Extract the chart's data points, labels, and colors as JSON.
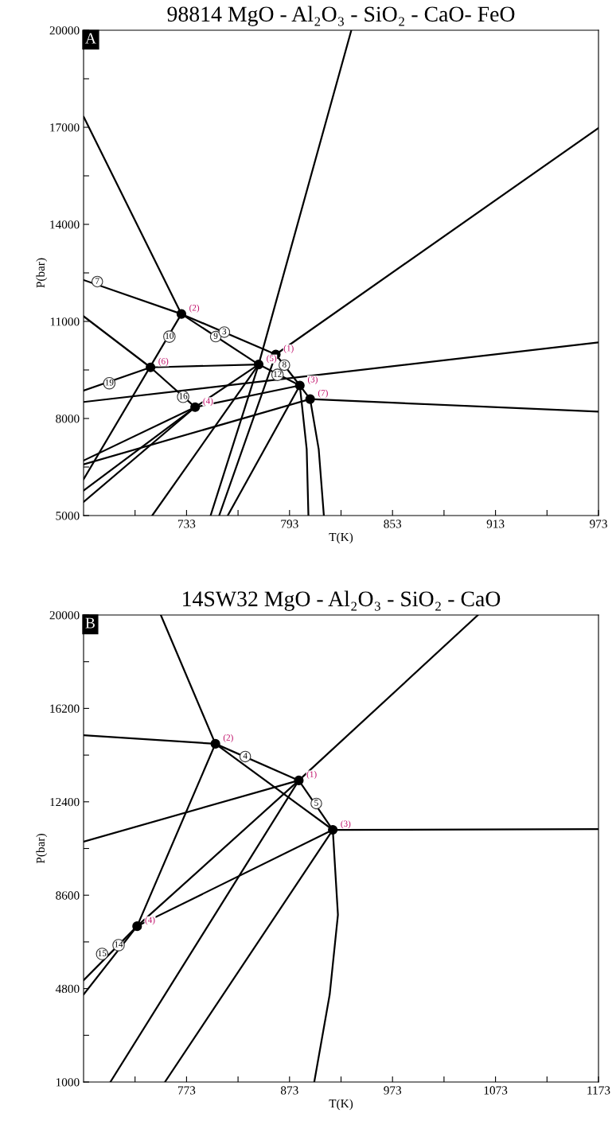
{
  "chart_data": [
    {
      "type": "line",
      "title": "98814 MgO - Al₂O₃ - SiO₂ - CaO- FeO",
      "xlabel": "T(K)",
      "ylabel": "P(bar)",
      "xlim": [
        673,
        973
      ],
      "ylim": [
        5000,
        20000
      ],
      "xticks": [
        {
          "value": 703,
          "label": null
        },
        733,
        {
          "value": 763,
          "label": null
        },
        793,
        {
          "value": 823,
          "label": null
        },
        853,
        {
          "value": 883,
          "label": null
        },
        913,
        {
          "value": 943,
          "label": null
        },
        973
      ],
      "yticks": [
        5000,
        {
          "value": 6500,
          "label": null
        },
        8000,
        {
          "value": 9500,
          "label": null
        },
        11000,
        {
          "value": 12500,
          "label": null
        },
        14000,
        {
          "value": 15500,
          "label": null
        },
        17000,
        {
          "value": 18500,
          "label": null
        },
        20000
      ],
      "grid": false,
      "legend": false,
      "marker": "none",
      "line_style": "solid",
      "series": [
        {
          "color": "#000000",
          "x": [
            673,
            730
          ],
          "values": [
            17330,
            11230
          ]
        },
        {
          "type": "line",
          "color": "#000000",
          "x": [
            673,
            730
          ],
          "values": [
            12280,
            11230
          ]
        },
        {
          "type": "line",
          "color": "#000000",
          "x": [
            730,
            785
          ],
          "values": [
            11230,
            9980
          ]
        },
        {
          "type": "line",
          "color": "#000000",
          "x": [
            730,
            775
          ],
          "values": [
            11230,
            9670
          ]
        },
        {
          "type": "line",
          "color": "#000000",
          "x": [
            730,
            673
          ],
          "values": [
            11230,
            6120
          ]
        },
        {
          "type": "line",
          "color": "#000000",
          "x": [
            673,
            712,
            738
          ],
          "values": [
            11160,
            9580,
            8350
          ]
        },
        {
          "type": "line",
          "color": "#000000",
          "x": [
            673,
            712
          ],
          "values": [
            8860,
            9580
          ]
        },
        {
          "type": "line",
          "color": "#000000",
          "x": [
            712,
            775
          ],
          "values": [
            9580,
            9670
          ]
        },
        {
          "type": "line",
          "color": "#000000",
          "x": [
            673,
            973
          ],
          "values": [
            8510,
            10350
          ]
        },
        {
          "type": "line",
          "color": "#000000",
          "x": [
            829,
            775,
            747
          ],
          "values": [
            20000,
            9670,
            5000
          ]
        },
        {
          "type": "line",
          "color": "#000000",
          "x": [
            785,
            973
          ],
          "values": [
            9980,
            16980
          ]
        },
        {
          "type": "line",
          "color": "#000000",
          "x": [
            805,
            973
          ],
          "values": [
            8600,
            8210
          ]
        },
        {
          "type": "line",
          "color": "#000000",
          "x": [
            775,
            799
          ],
          "values": [
            9670,
            9020
          ]
        },
        {
          "type": "line",
          "color": "#000000",
          "x": [
            785,
            799
          ],
          "values": [
            9980,
            9020
          ]
        },
        {
          "type": "line",
          "color": "#000000",
          "x": [
            799,
            805
          ],
          "values": [
            9020,
            8600
          ]
        },
        {
          "type": "line",
          "color": "#000000",
          "x": [
            799,
            803,
            804
          ],
          "values": [
            9020,
            7050,
            5000
          ]
        },
        {
          "type": "line",
          "color": "#000000",
          "x": [
            805,
            810,
            813
          ],
          "values": [
            8600,
            7050,
            5000
          ]
        },
        {
          "type": "line",
          "color": "#000000",
          "x": [
            738,
            799
          ],
          "values": [
            8350,
            9020
          ]
        },
        {
          "type": "line",
          "color": "#000000",
          "x": [
            738,
            775
          ],
          "values": [
            8350,
            9670
          ]
        },
        {
          "type": "line",
          "color": "#000000",
          "x": [
            738,
            673
          ],
          "values": [
            8350,
            6700
          ]
        },
        {
          "type": "line",
          "color": "#000000",
          "x": [
            738,
            673
          ],
          "values": [
            8350,
            5770
          ]
        },
        {
          "type": "line",
          "color": "#000000",
          "x": [
            738,
            673
          ],
          "values": [
            8350,
            5420
          ]
        },
        {
          "type": "line",
          "color": "#000000",
          "x": [
            805,
            673
          ],
          "values": [
            8600,
            6580
          ]
        },
        {
          "type": "line",
          "color": "#000000",
          "x": [
            775,
            713
          ],
          "values": [
            9670,
            5000
          ]
        },
        {
          "type": "line",
          "color": "#000000",
          "x": [
            785,
            752
          ],
          "values": [
            9980,
            5000
          ]
        },
        {
          "type": "line",
          "color": "#000000",
          "x": [
            799,
            757
          ],
          "values": [
            9020,
            5000
          ]
        },
        {
          "type": "scatter",
          "name": "(2)",
          "color": "#000000",
          "marker": "circle",
          "x": [
            730
          ],
          "values": [
            11230
          ]
        },
        {
          "type": "scatter",
          "name": "(6)",
          "color": "#000000",
          "marker": "circle",
          "x": [
            712
          ],
          "values": [
            9580
          ]
        },
        {
          "type": "scatter",
          "name": "(5)",
          "color": "#000000",
          "marker": "circle",
          "x": [
            775
          ],
          "values": [
            9670
          ]
        },
        {
          "type": "scatter",
          "name": "(1)",
          "color": "#000000",
          "marker": "circle",
          "x": [
            785
          ],
          "values": [
            9980
          ]
        },
        {
          "type": "scatter",
          "name": "(3)",
          "color": "#000000",
          "marker": "circle",
          "x": [
            799
          ],
          "values": [
            9020
          ]
        },
        {
          "type": "scatter",
          "name": "(7)",
          "color": "#000000",
          "marker": "circle",
          "x": [
            805
          ],
          "values": [
            8600
          ]
        },
        {
          "type": "scatter",
          "name": "(4)",
          "color": "#000000",
          "marker": "circle",
          "x": [
            738
          ],
          "values": [
            8350
          ]
        }
      ],
      "annotations": [
        "A",
        {
          "text": "7",
          "x": 681,
          "y": 12230
        },
        {
          "text": "10",
          "x": 723,
          "y": 10530
        },
        {
          "text": "9",
          "x": 750,
          "y": 10530
        },
        {
          "text": "3",
          "x": 755,
          "y": 10670
        },
        {
          "text": "19",
          "x": 688,
          "y": 9090
        },
        {
          "text": "16",
          "x": 731,
          "y": 8670
        },
        {
          "text": "8",
          "x": 790,
          "y": 9650
        },
        {
          "text": "12",
          "x": 786,
          "y": 9350
        }
      ]
    },
    {
      "type": "line",
      "title": "14SW32 MgO - Al₂O₃ - SiO₂ - CaO",
      "xlabel": "T(K)",
      "ylabel": "P(bar)",
      "xlim": [
        673,
        1173
      ],
      "ylim": [
        1000,
        20000
      ],
      "xticks": [
        {
          "value": 723,
          "label": null
        },
        773,
        {
          "value": 823,
          "label": null
        },
        873,
        {
          "value": 923,
          "label": null
        },
        973,
        {
          "value": 1023,
          "label": null
        },
        1073,
        {
          "value": 1123,
          "label": null
        },
        1173
      ],
      "yticks": [
        1000,
        {
          "value": 2900,
          "label": null
        },
        4800,
        {
          "value": 6700,
          "label": null
        },
        8600,
        {
          "value": 10500,
          "label": null
        },
        12400,
        {
          "value": 14300,
          "label": null
        },
        16200,
        {
          "value": 18100,
          "label": null
        },
        20000
      ],
      "grid": false,
      "legend": false,
      "marker": "none",
      "line_style": "solid",
      "series": [
        {
          "type": "line",
          "color": "#000000",
          "x": [
            748,
            801
          ],
          "values": [
            20000,
            14760
          ]
        },
        {
          "type": "line",
          "color": "#000000",
          "x": [
            673,
            801
          ],
          "values": [
            15110,
            14760
          ]
        },
        {
          "type": "line",
          "color": "#000000",
          "x": [
            801,
            882
          ],
          "values": [
            14760,
            13270
          ]
        },
        {
          "type": "line",
          "color": "#000000",
          "x": [
            801,
            915
          ],
          "values": [
            14760,
            11260
          ]
        },
        {
          "type": "line",
          "color": "#000000",
          "x": [
            882,
            915
          ],
          "values": [
            13270,
            11260
          ]
        },
        {
          "type": "line",
          "color": "#000000",
          "x": [
            882,
            1056
          ],
          "values": [
            13270,
            20000
          ]
        },
        {
          "type": "line",
          "color": "#000000",
          "x": [
            915,
            1173
          ],
          "values": [
            11260,
            11290
          ]
        },
        {
          "type": "line",
          "color": "#000000",
          "x": [
            915,
            920,
            912,
            897
          ],
          "values": [
            11260,
            7800,
            4560,
            1000
          ]
        },
        {
          "type": "line",
          "color": "#000000",
          "x": [
            801,
            725,
            673
          ],
          "values": [
            14760,
            7340,
            5140
          ]
        },
        {
          "type": "line",
          "color": "#000000",
          "x": [
            725,
            673
          ],
          "values": [
            7340,
            4560
          ]
        },
        {
          "type": "line",
          "color": "#000000",
          "x": [
            725,
            915
          ],
          "values": [
            7340,
            11260
          ]
        },
        {
          "type": "line",
          "color": "#000000",
          "x": [
            725,
            882
          ],
          "values": [
            7340,
            13270
          ]
        },
        {
          "type": "line",
          "color": "#000000",
          "x": [
            673,
            882
          ],
          "values": [
            10780,
            13270
          ]
        },
        {
          "type": "line",
          "color": "#000000",
          "x": [
            882,
            699
          ],
          "values": [
            13270,
            1000
          ]
        },
        {
          "type": "line",
          "color": "#000000",
          "x": [
            915,
            752
          ],
          "values": [
            11260,
            1000
          ]
        },
        {
          "type": "scatter",
          "name": "(2)",
          "color": "#000000",
          "marker": "circle",
          "x": [
            801
          ],
          "values": [
            14760
          ]
        },
        {
          "type": "scatter",
          "name": "(1)",
          "color": "#000000",
          "marker": "circle",
          "x": [
            882
          ],
          "values": [
            13270
          ]
        },
        {
          "type": "scatter",
          "name": "(3)",
          "color": "#000000",
          "marker": "circle",
          "x": [
            915
          ],
          "values": [
            11260
          ]
        },
        {
          "type": "scatter",
          "name": "(4)",
          "color": "#000000",
          "marker": "circle",
          "x": [
            725
          ],
          "values": [
            7340
          ]
        }
      ],
      "annotations": [
        "B",
        {
          "text": "4",
          "x": 830,
          "y": 14240
        },
        {
          "text": "5",
          "x": 899,
          "y": 12330
        },
        {
          "text": "14",
          "x": 707,
          "y": 6570
        },
        {
          "text": "15",
          "x": 691,
          "y": 6210
        }
      ]
    }
  ]
}
